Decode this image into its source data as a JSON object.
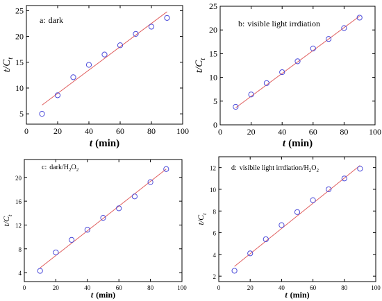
{
  "chart_data": [
    {
      "type": "scatter",
      "label_prefix": "a:",
      "label_text": "dark",
      "label_sub": "",
      "xlabel": "t",
      "xlabel_unit": "(min)",
      "ylabel_main": "t/C",
      "ylabel_sub": "t",
      "xlim": [
        0,
        100
      ],
      "ylim": [
        3,
        26
      ],
      "xticks": [
        0,
        20,
        40,
        60,
        80,
        100
      ],
      "yticks": [
        5,
        10,
        15,
        20,
        25
      ],
      "x": [
        10,
        20,
        30,
        40,
        50,
        60,
        70,
        80,
        90
      ],
      "y": [
        5.0,
        8.6,
        12.1,
        14.5,
        16.5,
        18.3,
        20.5,
        21.9,
        23.6
      ],
      "fit": {
        "x": [
          10,
          90
        ],
        "y": [
          6.7,
          24.8
        ]
      },
      "marker_color": "#4a4ad9",
      "line_color": "#e06060"
    },
    {
      "type": "scatter",
      "label_prefix": "b:",
      "label_text": "visible light irrdiation",
      "label_sub": "",
      "xlabel": "t",
      "xlabel_unit": "(min)",
      "ylabel_main": "t/C",
      "ylabel_sub": "t",
      "xlim": [
        0,
        100
      ],
      "ylim": [
        0,
        25
      ],
      "xticks": [
        0,
        20,
        40,
        60,
        80,
        100
      ],
      "yticks": [
        0,
        5,
        10,
        15,
        20,
        25
      ],
      "x": [
        10,
        20,
        30,
        40,
        50,
        60,
        70,
        80,
        90
      ],
      "y": [
        3.8,
        6.4,
        8.8,
        11.1,
        13.4,
        16.1,
        18.1,
        20.4,
        22.6
      ],
      "fit": {
        "x": [
          10,
          90
        ],
        "y": [
          3.6,
          22.9
        ]
      },
      "marker_color": "#4a4ad9",
      "line_color": "#e06060"
    },
    {
      "type": "scatter",
      "label_prefix": "c:",
      "label_text": "dark/H",
      "label_sub": "2",
      "label_suffix": "O",
      "label_sub2": "2",
      "xlabel": "t",
      "xlabel_unit": "(min)",
      "ylabel_main": "t/C",
      "ylabel_sub": "t",
      "xlim": [
        0,
        100
      ],
      "ylim": [
        2.5,
        23
      ],
      "xticks": [
        0,
        20,
        40,
        60,
        80,
        100
      ],
      "yticks": [
        4,
        8,
        12,
        16,
        20
      ],
      "x": [
        10,
        20,
        30,
        40,
        50,
        60,
        70,
        80,
        90
      ],
      "y": [
        4.3,
        7.4,
        9.5,
        11.2,
        13.2,
        14.8,
        16.8,
        19.2,
        21.4
      ],
      "fit": {
        "x": [
          10,
          90
        ],
        "y": [
          4.8,
          21.4
        ]
      },
      "marker_color": "#4a4ad9",
      "line_color": "#e06060"
    },
    {
      "type": "scatter",
      "label_prefix": "d:",
      "label_text": "visibile light irrdiation/H",
      "label_sub": "2",
      "label_suffix": "O",
      "label_sub2": "2",
      "xlabel": "t",
      "xlabel_unit": "(min)",
      "ylabel_main": "t/C",
      "ylabel_sub": "t",
      "xlim": [
        0,
        100
      ],
      "ylim": [
        1.5,
        13
      ],
      "xticks": [
        0,
        20,
        40,
        60,
        80,
        100
      ],
      "yticks": [
        2,
        4,
        6,
        8,
        10,
        12
      ],
      "x": [
        10,
        20,
        30,
        40,
        50,
        60,
        70,
        80,
        90
      ],
      "y": [
        2.5,
        4.1,
        5.4,
        6.7,
        7.9,
        9.0,
        10.0,
        11.0,
        11.9
      ],
      "fit": {
        "x": [
          10,
          90
        ],
        "y": [
          2.9,
          12.2
        ]
      },
      "marker_color": "#4a4ad9",
      "line_color": "#e06060"
    }
  ]
}
